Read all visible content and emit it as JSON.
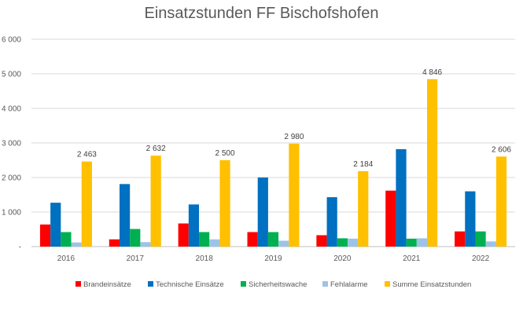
{
  "chart_data": {
    "type": "bar",
    "title": "Einsatzstunden FF Bischofshofen",
    "categories": [
      "2016",
      "2017",
      "2018",
      "2019",
      "2020",
      "2021",
      "2022"
    ],
    "series": [
      {
        "name": "Brandeinsätze",
        "color": "#ff0000",
        "values": [
          640,
          210,
          670,
          420,
          330,
          1620,
          440
        ]
      },
      {
        "name": "Technische Einsätze",
        "color": "#0070c0",
        "values": [
          1270,
          1810,
          1220,
          2000,
          1430,
          2820,
          1600
        ]
      },
      {
        "name": "Sicherheitswache",
        "color": "#00b050",
        "values": [
          420,
          510,
          420,
          420,
          240,
          230,
          440
        ]
      },
      {
        "name": "Fehlalarme",
        "color": "#9dc3e6",
        "values": [
          120,
          130,
          210,
          170,
          230,
          240,
          150
        ]
      },
      {
        "name": "Summe Einsatzstunden",
        "color": "#ffc000",
        "values": [
          2463,
          2632,
          2500,
          2980,
          2184,
          4846,
          2606
        ]
      }
    ],
    "data_labels": [
      "2 463",
      "2 632",
      "2 500",
      "2 980",
      "2 184",
      "4 846",
      "2 606"
    ],
    "y_tick_labels": [
      "-",
      "1 000",
      "2 000",
      "3 000",
      "4 000",
      "5 000",
      "6 000"
    ],
    "ylim": [
      0,
      6000
    ],
    "ytick_step": 1000,
    "grid": true,
    "legend_position": "bottom"
  }
}
